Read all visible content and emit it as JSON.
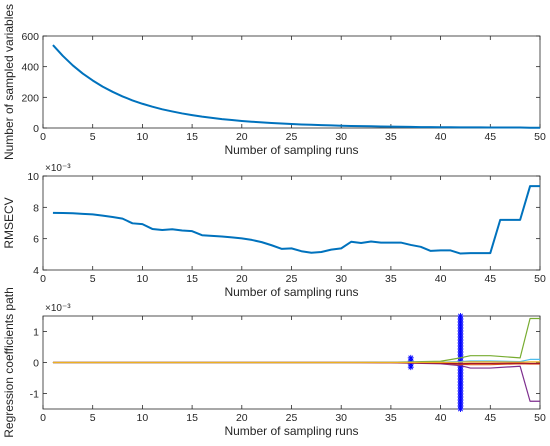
{
  "colors": {
    "axis": "#262626",
    "series_primary": "#0072BD",
    "marker": "#0000FF",
    "background": "#ffffff"
  },
  "chart_data": [
    {
      "type": "line",
      "id": "sampled-variables",
      "title": "",
      "xlabel": "Number of sampling runs",
      "ylabel": "Number of sampled variables",
      "xlim": [
        0,
        50
      ],
      "ylim": [
        0,
        600
      ],
      "xticks": [
        0,
        5,
        10,
        15,
        20,
        25,
        30,
        35,
        40,
        45,
        50
      ],
      "yticks": [
        0,
        200,
        400,
        600
      ],
      "grid": false,
      "x": [
        1,
        2,
        3,
        4,
        5,
        6,
        7,
        8,
        9,
        10,
        11,
        12,
        13,
        14,
        15,
        16,
        17,
        18,
        19,
        20,
        21,
        22,
        23,
        24,
        25,
        26,
        27,
        28,
        29,
        30,
        31,
        32,
        33,
        34,
        35,
        36,
        37,
        38,
        39,
        40,
        41,
        42,
        43,
        44,
        45,
        46,
        47,
        48,
        49,
        50
      ],
      "series": [
        {
          "values": [
            541,
            470,
            408,
            355,
            310,
            270,
            236,
            206,
            180,
            158,
            139,
            122,
            108,
            95,
            84,
            74,
            66,
            58,
            52,
            46,
            41,
            37,
            33,
            29,
            26,
            23,
            21,
            19,
            17,
            15,
            13,
            12,
            11,
            10,
            9,
            8,
            7,
            6,
            6,
            5,
            5,
            4,
            4,
            4,
            3,
            3,
            3,
            3,
            2,
            2
          ]
        }
      ]
    },
    {
      "type": "line",
      "id": "rmsecv",
      "title": "",
      "xlabel": "Number of sampling runs",
      "ylabel": "RMSECV",
      "exponent_label": "×10⁻³",
      "xlim": [
        0,
        50
      ],
      "ylim": [
        4,
        10
      ],
      "xticks": [
        0,
        5,
        10,
        15,
        20,
        25,
        30,
        35,
        40,
        45,
        50
      ],
      "yticks": [
        4,
        6,
        8,
        10
      ],
      "grid": false,
      "x": [
        1,
        2,
        3,
        4,
        5,
        6,
        7,
        8,
        9,
        10,
        11,
        12,
        13,
        14,
        15,
        16,
        17,
        18,
        19,
        20,
        21,
        22,
        23,
        24,
        25,
        26,
        27,
        28,
        29,
        30,
        31,
        32,
        33,
        34,
        35,
        36,
        37,
        38,
        39,
        40,
        41,
        42,
        43,
        44,
        45,
        46,
        47,
        48,
        49,
        50
      ],
      "series": [
        {
          "values": [
            7.65,
            7.64,
            7.62,
            7.58,
            7.55,
            7.47,
            7.38,
            7.28,
            6.98,
            6.93,
            6.62,
            6.55,
            6.6,
            6.52,
            6.48,
            6.22,
            6.18,
            6.14,
            6.08,
            6.02,
            5.92,
            5.78,
            5.58,
            5.35,
            5.38,
            5.2,
            5.1,
            5.15,
            5.3,
            5.38,
            5.8,
            5.72,
            5.82,
            5.75,
            5.75,
            5.75,
            5.6,
            5.48,
            5.22,
            5.25,
            5.25,
            5.05,
            5.08,
            5.08,
            5.08,
            7.2,
            7.2,
            7.2,
            9.35,
            9.35
          ]
        }
      ]
    },
    {
      "type": "line",
      "id": "regression-path",
      "title": "",
      "xlabel": "Number of sampling runs",
      "ylabel": "Regression coefficients path",
      "exponent_label": "×10⁻³",
      "xlim": [
        0,
        50
      ],
      "ylim": [
        -1.5,
        1.5
      ],
      "xticks": [
        0,
        5,
        10,
        15,
        20,
        25,
        30,
        35,
        40,
        45,
        50
      ],
      "yticks": [
        -1,
        0,
        1
      ],
      "grid": false,
      "markers": [
        {
          "x": 37,
          "ymin": -0.15,
          "ymax": 0.15
        },
        {
          "x": 42,
          "ymin": -1.5,
          "ymax": 1.5
        }
      ],
      "series": [
        {
          "color": "#77AC30",
          "x": [
            1,
            30,
            35,
            40,
            42,
            43,
            45,
            48,
            49,
            50
          ],
          "values": [
            0,
            0,
            0.01,
            0.04,
            0.15,
            0.22,
            0.22,
            0.15,
            1.42,
            1.42
          ]
        },
        {
          "color": "#7E2F8E",
          "x": [
            1,
            30,
            35,
            40,
            42,
            43,
            45,
            48,
            49,
            50
          ],
          "values": [
            0,
            0,
            -0.01,
            -0.04,
            -0.1,
            -0.18,
            -0.18,
            -0.12,
            -1.25,
            -1.25
          ]
        },
        {
          "color": "#D95319",
          "x": [
            1,
            30,
            35,
            40,
            42,
            43,
            45,
            48,
            49,
            50
          ],
          "values": [
            0,
            0,
            0.01,
            -0.02,
            -0.06,
            -0.07,
            -0.07,
            -0.04,
            -0.05,
            -0.05
          ]
        },
        {
          "color": "#4DBEEE",
          "x": [
            1,
            30,
            35,
            40,
            42,
            43,
            45,
            48,
            49,
            50
          ],
          "values": [
            0,
            0,
            0.005,
            0.01,
            0.03,
            0.05,
            0.05,
            0.03,
            0.1,
            0.1
          ]
        },
        {
          "color": "#A2142F",
          "x": [
            1,
            30,
            35,
            40,
            42,
            43,
            45,
            48,
            49,
            50
          ],
          "values": [
            0,
            0,
            -0.005,
            -0.02,
            -0.04,
            -0.03,
            -0.03,
            -0.02,
            -0.03,
            -0.03
          ]
        },
        {
          "color": "#EDB120",
          "x": [
            1,
            30,
            35,
            40,
            42,
            43,
            45,
            48,
            49,
            50
          ],
          "values": [
            0,
            0,
            0,
            0.005,
            0.01,
            0.02,
            0.02,
            0.01,
            0.02,
            0.02
          ]
        }
      ]
    }
  ]
}
